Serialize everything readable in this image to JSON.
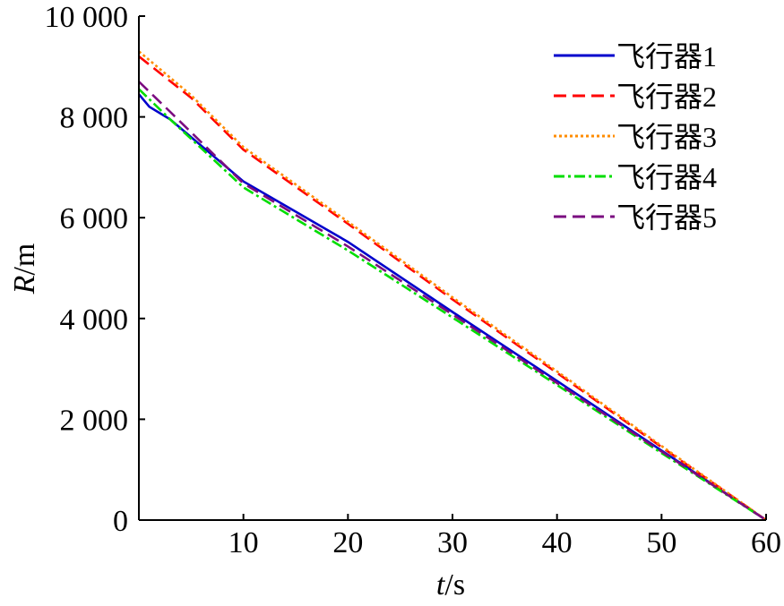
{
  "chart_data": {
    "type": "line",
    "xlabel": {
      "var": "t",
      "unit": "/s"
    },
    "ylabel": {
      "var": "R",
      "unit": "/m"
    },
    "xlim": [
      0,
      60
    ],
    "ylim": [
      0,
      10000
    ],
    "x_ticks": [
      10,
      20,
      30,
      40,
      50,
      60
    ],
    "y_ticks": [
      0,
      2000,
      4000,
      6000,
      8000,
      10000
    ],
    "x_tick_labels": [
      "10",
      "20",
      "30",
      "40",
      "50",
      "60"
    ],
    "y_tick_labels": [
      "0",
      "2 000",
      "4 000",
      "6 000",
      "8 000",
      "10 000"
    ],
    "grid": false,
    "legend_position": "top-right",
    "series": [
      {
        "name": "飞行器1",
        "color": "#0000CC",
        "style": "solid",
        "points": [
          [
            0,
            8450
          ],
          [
            1,
            8200
          ],
          [
            3,
            7950
          ],
          [
            10,
            6720
          ],
          [
            20,
            5520
          ],
          [
            30,
            4130
          ],
          [
            40,
            2760
          ],
          [
            50,
            1380
          ],
          [
            60,
            0
          ]
        ]
      },
      {
        "name": "飞行器2",
        "color": "#FF0000",
        "style": "dashed",
        "points": [
          [
            0,
            9200
          ],
          [
            5,
            8380
          ],
          [
            10,
            7350
          ],
          [
            20,
            5880
          ],
          [
            30,
            4380
          ],
          [
            40,
            2920
          ],
          [
            50,
            1450
          ],
          [
            60,
            0
          ]
        ]
      },
      {
        "name": "飞行器3",
        "color": "#FF8C00",
        "style": "dotted",
        "points": [
          [
            0,
            9300
          ],
          [
            5,
            8430
          ],
          [
            10,
            7400
          ],
          [
            20,
            5920
          ],
          [
            30,
            4420
          ],
          [
            40,
            2950
          ],
          [
            50,
            1470
          ],
          [
            60,
            0
          ]
        ]
      },
      {
        "name": "飞行器4",
        "color": "#00DD00",
        "style": "dashdot",
        "points": [
          [
            0,
            8550
          ],
          [
            3,
            7950
          ],
          [
            10,
            6600
          ],
          [
            20,
            5350
          ],
          [
            30,
            4020
          ],
          [
            40,
            2680
          ],
          [
            50,
            1330
          ],
          [
            60,
            0
          ]
        ]
      },
      {
        "name": "飞行器5",
        "color": "#7B0D80",
        "style": "dashed",
        "points": [
          [
            0,
            8700
          ],
          [
            3,
            8100
          ],
          [
            10,
            6680
          ],
          [
            20,
            5430
          ],
          [
            30,
            4080
          ],
          [
            40,
            2720
          ],
          [
            50,
            1360
          ],
          [
            60,
            0
          ]
        ]
      }
    ]
  }
}
